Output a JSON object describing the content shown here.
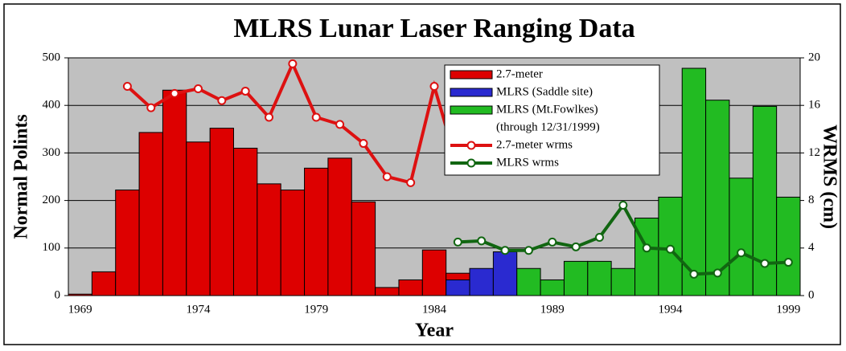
{
  "chart_data": {
    "type": "bar",
    "title": "MLRS Lunar Laser Ranging Data",
    "x_label": "Year",
    "y_label": "Normal Polints",
    "y2_label": "WRMS (cm)",
    "categories": [
      "1969",
      null,
      null,
      null,
      null,
      "1974",
      null,
      null,
      null,
      null,
      "1979",
      null,
      null,
      null,
      null,
      "1984",
      null,
      null,
      null,
      null,
      "1989",
      null,
      null,
      null,
      null,
      "1994",
      null,
      null,
      null,
      null,
      "1999"
    ],
    "ylim": [
      0,
      500
    ],
    "yticks": [
      0,
      100,
      200,
      300,
      400,
      500
    ],
    "y2lim": [
      0,
      20
    ],
    "y2ticks": [
      0,
      4,
      8,
      12,
      16,
      20
    ],
    "grid": true,
    "background": "#c0c0c0",
    "legend_note": "(through 12/31/1999)",
    "series": [
      {
        "name": "2.7-meter",
        "type": "bar",
        "color": "#dd0000",
        "values": [
          3,
          50,
          222,
          343,
          432,
          323,
          352,
          310,
          235,
          222,
          268,
          289,
          197,
          17,
          33,
          96,
          47,
          null,
          null,
          null,
          null,
          null,
          null,
          null,
          null,
          null,
          null,
          null,
          null,
          null,
          null
        ]
      },
      {
        "name": "MLRS (Saddle site)",
        "type": "bar",
        "color": "#2a2ad0",
        "values": [
          null,
          null,
          null,
          null,
          null,
          null,
          null,
          null,
          null,
          null,
          null,
          null,
          null,
          null,
          null,
          null,
          33,
          57,
          92,
          null,
          null,
          null,
          null,
          null,
          null,
          null,
          null,
          null,
          null,
          null,
          null
        ]
      },
      {
        "name": "MLRS (Mt.Fowlkes)",
        "type": "bar",
        "color": "#22bb22",
        "values": [
          null,
          null,
          null,
          null,
          null,
          null,
          null,
          null,
          null,
          null,
          null,
          null,
          null,
          null,
          null,
          null,
          null,
          null,
          null,
          57,
          33,
          72,
          72,
          57,
          163,
          207,
          478,
          411,
          247,
          398,
          207
        ]
      },
      {
        "name": "2.7-meter wrms",
        "type": "line",
        "axis": "y2",
        "color": "#dd1111",
        "values": [
          null,
          null,
          17.6,
          15.8,
          17.0,
          17.4,
          16.4,
          17.2,
          15.0,
          19.5,
          15.0,
          14.4,
          12.8,
          10.0,
          9.5,
          17.6,
          10.8,
          null,
          null,
          null,
          null,
          null,
          null,
          null,
          null,
          null,
          null,
          null,
          null,
          null,
          null
        ]
      },
      {
        "name": "MLRS wrms",
        "type": "line",
        "axis": "y2",
        "color": "#116611",
        "values": [
          null,
          null,
          null,
          null,
          null,
          null,
          null,
          null,
          null,
          null,
          null,
          null,
          null,
          null,
          null,
          null,
          4.5,
          4.6,
          3.8,
          3.8,
          4.5,
          4.1,
          4.9,
          7.6,
          4.0,
          3.9,
          1.8,
          1.9,
          3.6,
          2.7,
          2.8
        ]
      }
    ]
  }
}
